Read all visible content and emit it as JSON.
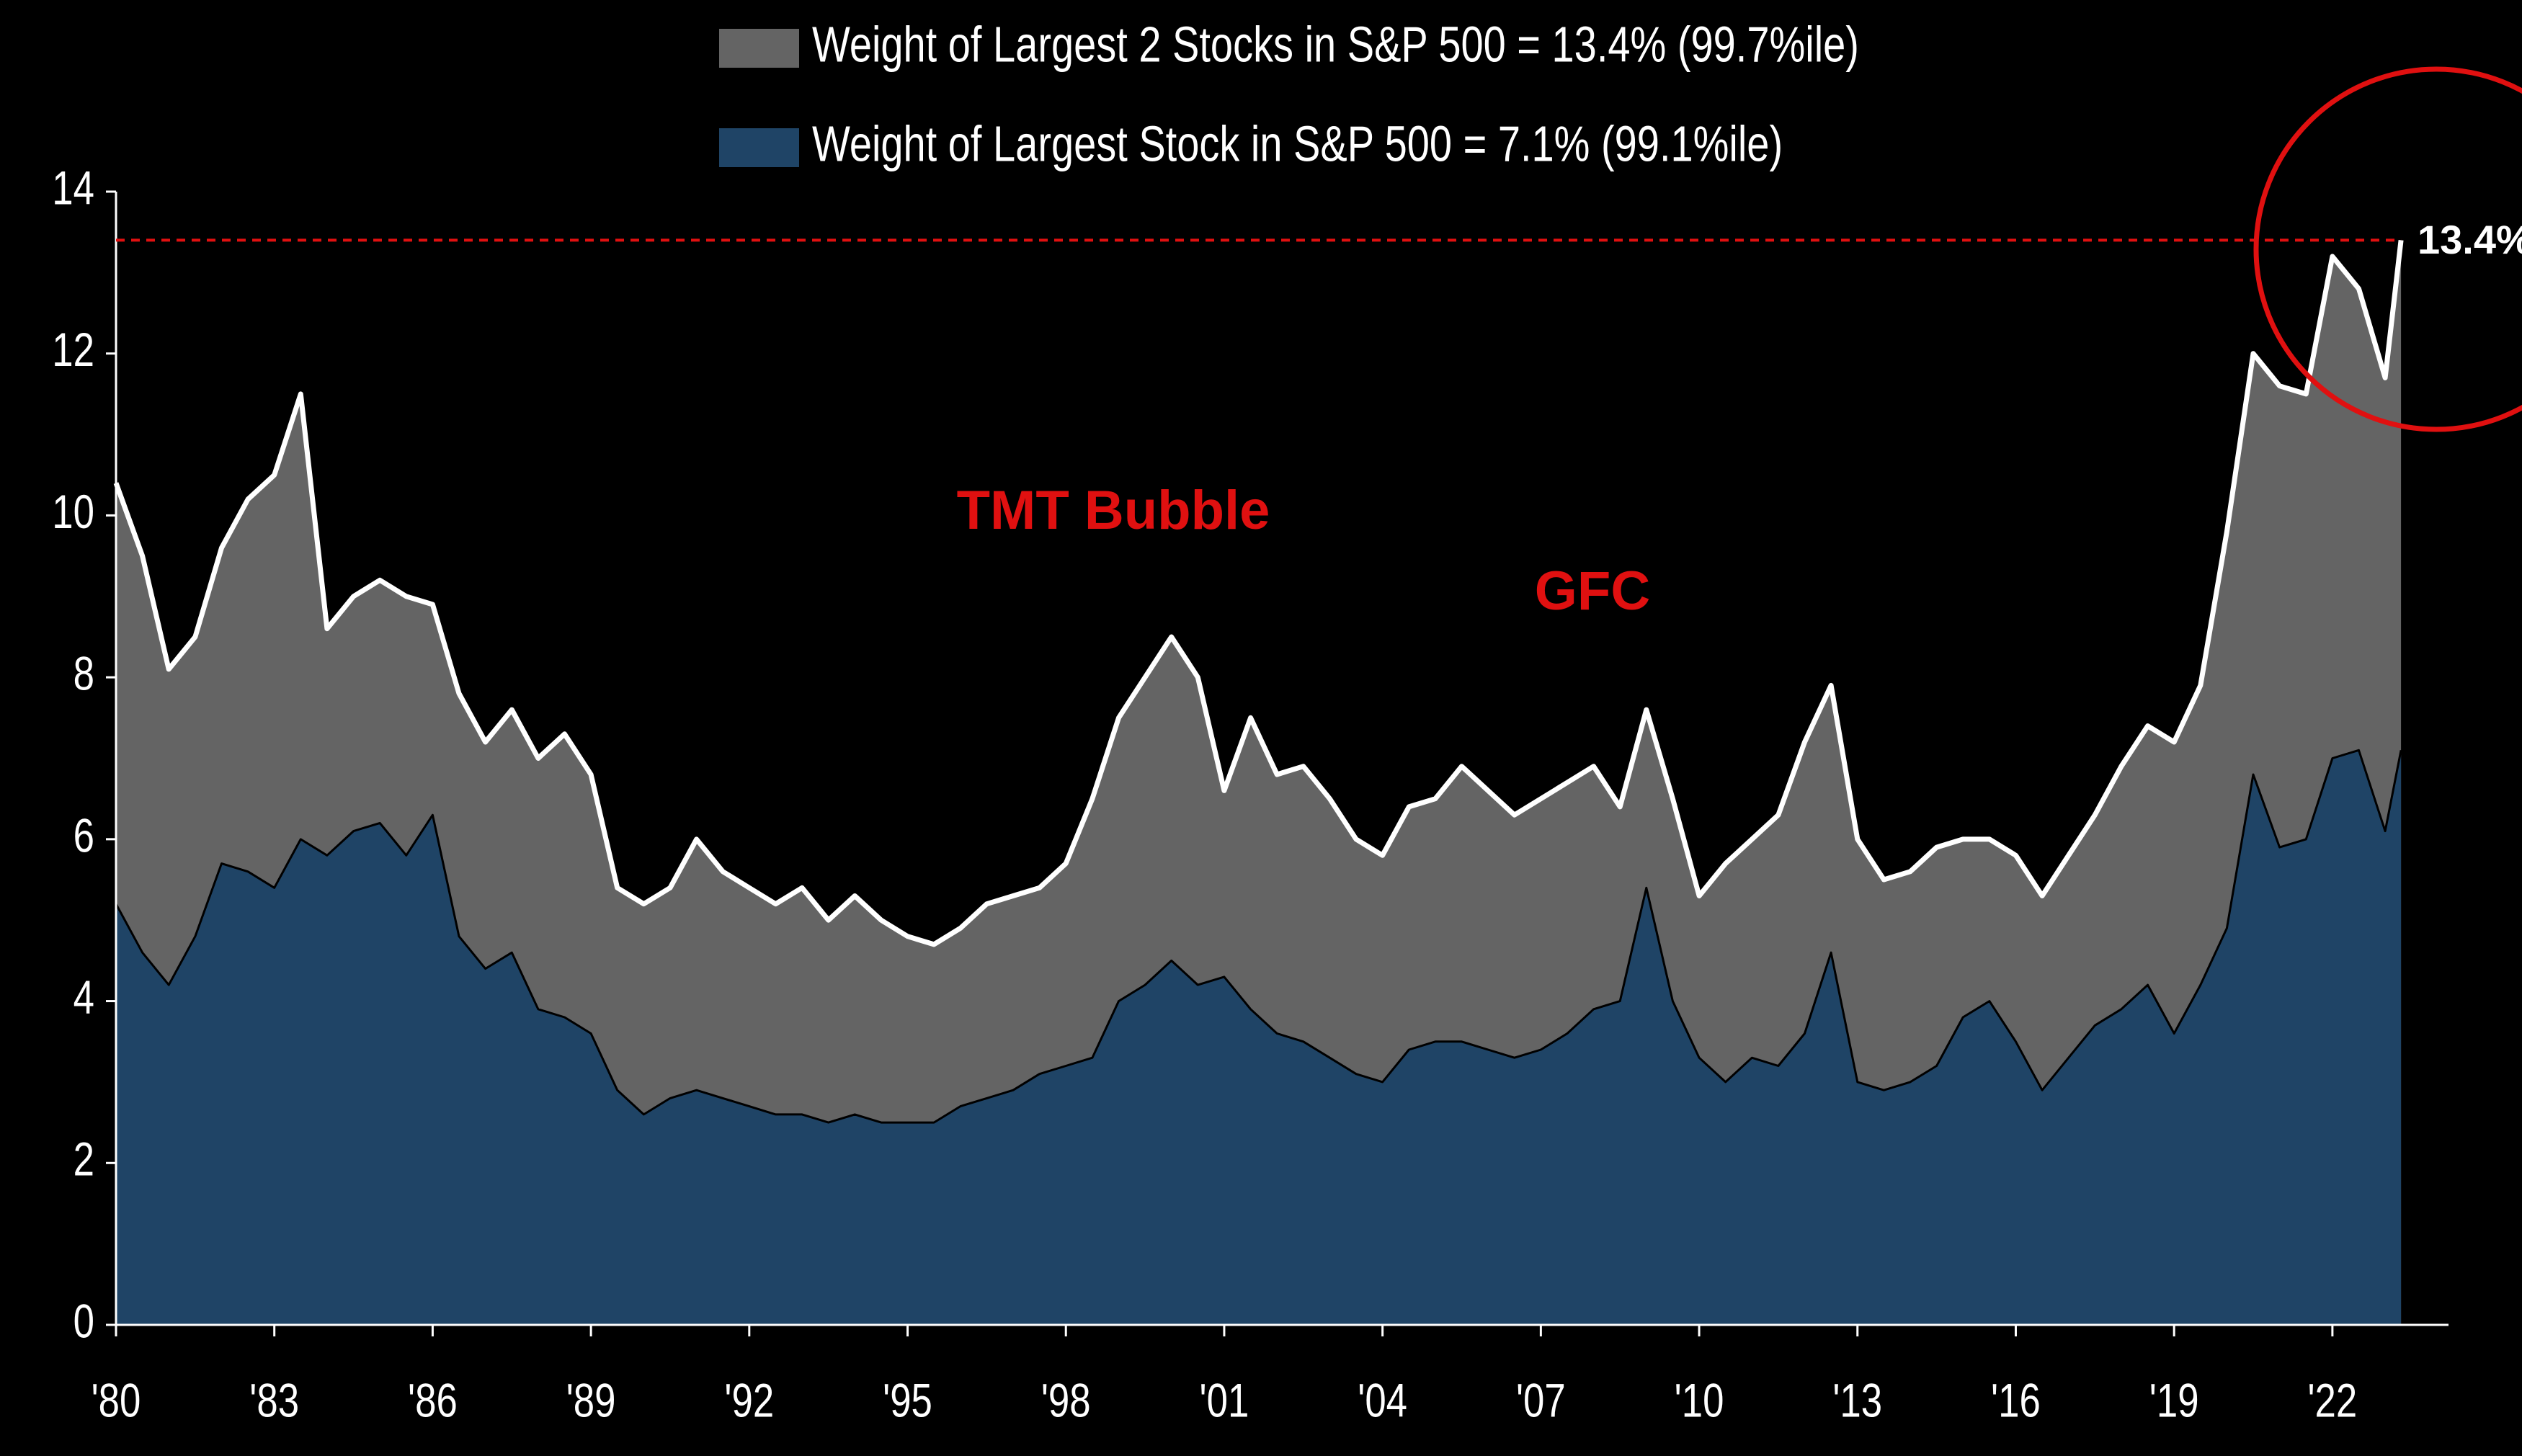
{
  "chart_data": {
    "type": "area",
    "annotations": [
      "TMT Bubble",
      "GFC"
    ],
    "reference_line": {
      "value": 13.4,
      "label": "13.4%",
      "color": "#e01010"
    },
    "x": [
      1980,
      1980.5,
      1981,
      1981.5,
      1982,
      1982.5,
      1983,
      1983.5,
      1984,
      1984.5,
      1985,
      1985.5,
      1986,
      1986.5,
      1987,
      1987.5,
      1988,
      1988.5,
      1989,
      1989.5,
      1990,
      1990.5,
      1991,
      1991.5,
      1992,
      1992.5,
      1993,
      1993.5,
      1994,
      1994.5,
      1995,
      1995.5,
      1996,
      1996.5,
      1997,
      1997.5,
      1998,
      1998.5,
      1999,
      1999.5,
      2000,
      2000.5,
      2001,
      2001.5,
      2002,
      2002.5,
      2003,
      2003.5,
      2004,
      2004.5,
      2005,
      2005.5,
      2006,
      2006.5,
      2007,
      2007.5,
      2008,
      2008.5,
      2009,
      2009.5,
      2010,
      2010.5,
      2011,
      2011.5,
      2012,
      2012.5,
      2013,
      2013.5,
      2014,
      2014.5,
      2015,
      2015.5,
      2016,
      2016.5,
      2017,
      2017.5,
      2018,
      2018.5,
      2019,
      2019.5,
      2020,
      2020.5,
      2021,
      2021.5,
      2022,
      2022.5,
      2023,
      2023.3
    ],
    "series": [
      {
        "name": "Weight of Largest 2 Stocks in S&P 500 = 13.4% (99.7%ile)",
        "color": "#646464",
        "line_color": "#ffffff",
        "values": [
          10.4,
          9.5,
          8.1,
          8.5,
          9.6,
          10.2,
          10.5,
          11.5,
          8.6,
          9.0,
          9.2,
          9.0,
          8.9,
          7.8,
          7.2,
          7.6,
          7.0,
          7.3,
          6.8,
          5.4,
          5.2,
          5.4,
          6.0,
          5.6,
          5.4,
          5.2,
          5.4,
          5.0,
          5.3,
          5.0,
          4.8,
          4.7,
          4.9,
          5.2,
          5.3,
          5.4,
          5.7,
          6.5,
          7.5,
          8.0,
          8.5,
          8.0,
          6.6,
          7.5,
          6.8,
          6.9,
          6.5,
          6.0,
          5.8,
          6.4,
          6.5,
          6.9,
          6.6,
          6.3,
          6.5,
          6.7,
          6.9,
          6.4,
          7.6,
          6.5,
          5.3,
          5.7,
          6.0,
          6.3,
          7.2,
          7.9,
          6.0,
          5.5,
          5.6,
          5.9,
          6.0,
          6.0,
          5.8,
          5.3,
          5.8,
          6.3,
          6.9,
          7.4,
          7.2,
          7.9,
          9.8,
          12.0,
          11.6,
          11.5,
          13.2,
          12.8,
          11.7,
          13.4
        ]
      },
      {
        "name": "Weight of Largest Stock in S&P 500 = 7.1% (99.1%ile)",
        "color": "#1f4466",
        "line_color": "#000000",
        "values": [
          5.2,
          4.6,
          4.2,
          4.8,
          5.7,
          5.6,
          5.4,
          6.0,
          5.8,
          6.1,
          6.2,
          5.8,
          6.3,
          4.8,
          4.4,
          4.6,
          3.9,
          3.8,
          3.6,
          2.9,
          2.6,
          2.8,
          2.9,
          2.8,
          2.7,
          2.6,
          2.6,
          2.5,
          2.6,
          2.5,
          2.5,
          2.5,
          2.7,
          2.8,
          2.9,
          3.1,
          3.2,
          3.3,
          4.0,
          4.2,
          4.5,
          4.2,
          4.3,
          3.9,
          3.6,
          3.5,
          3.3,
          3.1,
          3.0,
          3.4,
          3.5,
          3.5,
          3.4,
          3.3,
          3.4,
          3.6,
          3.9,
          4.0,
          5.4,
          4.0,
          3.3,
          3.0,
          3.3,
          3.2,
          3.6,
          4.6,
          3.0,
          2.9,
          3.0,
          3.2,
          3.8,
          4.0,
          3.5,
          2.9,
          3.3,
          3.7,
          3.9,
          4.2,
          3.6,
          4.2,
          4.9,
          6.8,
          5.9,
          6.0,
          7.0,
          7.1,
          6.1,
          7.1
        ]
      }
    ],
    "xlim": [
      1980,
      2024.2
    ],
    "xticks": [
      {
        "value": 1980,
        "label": "'80"
      },
      {
        "value": 1983,
        "label": "'83"
      },
      {
        "value": 1986,
        "label": "'86"
      },
      {
        "value": 1989,
        "label": "'89"
      },
      {
        "value": 1992,
        "label": "'92"
      },
      {
        "value": 1995,
        "label": "'95"
      },
      {
        "value": 1998,
        "label": "'98"
      },
      {
        "value": 2001,
        "label": "'01"
      },
      {
        "value": 2004,
        "label": "'04"
      },
      {
        "value": 2007,
        "label": "'07"
      },
      {
        "value": 2010,
        "label": "'10"
      },
      {
        "value": 2013,
        "label": "'13"
      },
      {
        "value": 2016,
        "label": "'16"
      },
      {
        "value": 2019,
        "label": "'19"
      },
      {
        "value": 2022,
        "label": "'22"
      }
    ],
    "ylim": [
      0,
      14
    ],
    "yticks": [
      0,
      2,
      4,
      6,
      8,
      10,
      12,
      14
    ],
    "grid": false,
    "legend": "top"
  }
}
